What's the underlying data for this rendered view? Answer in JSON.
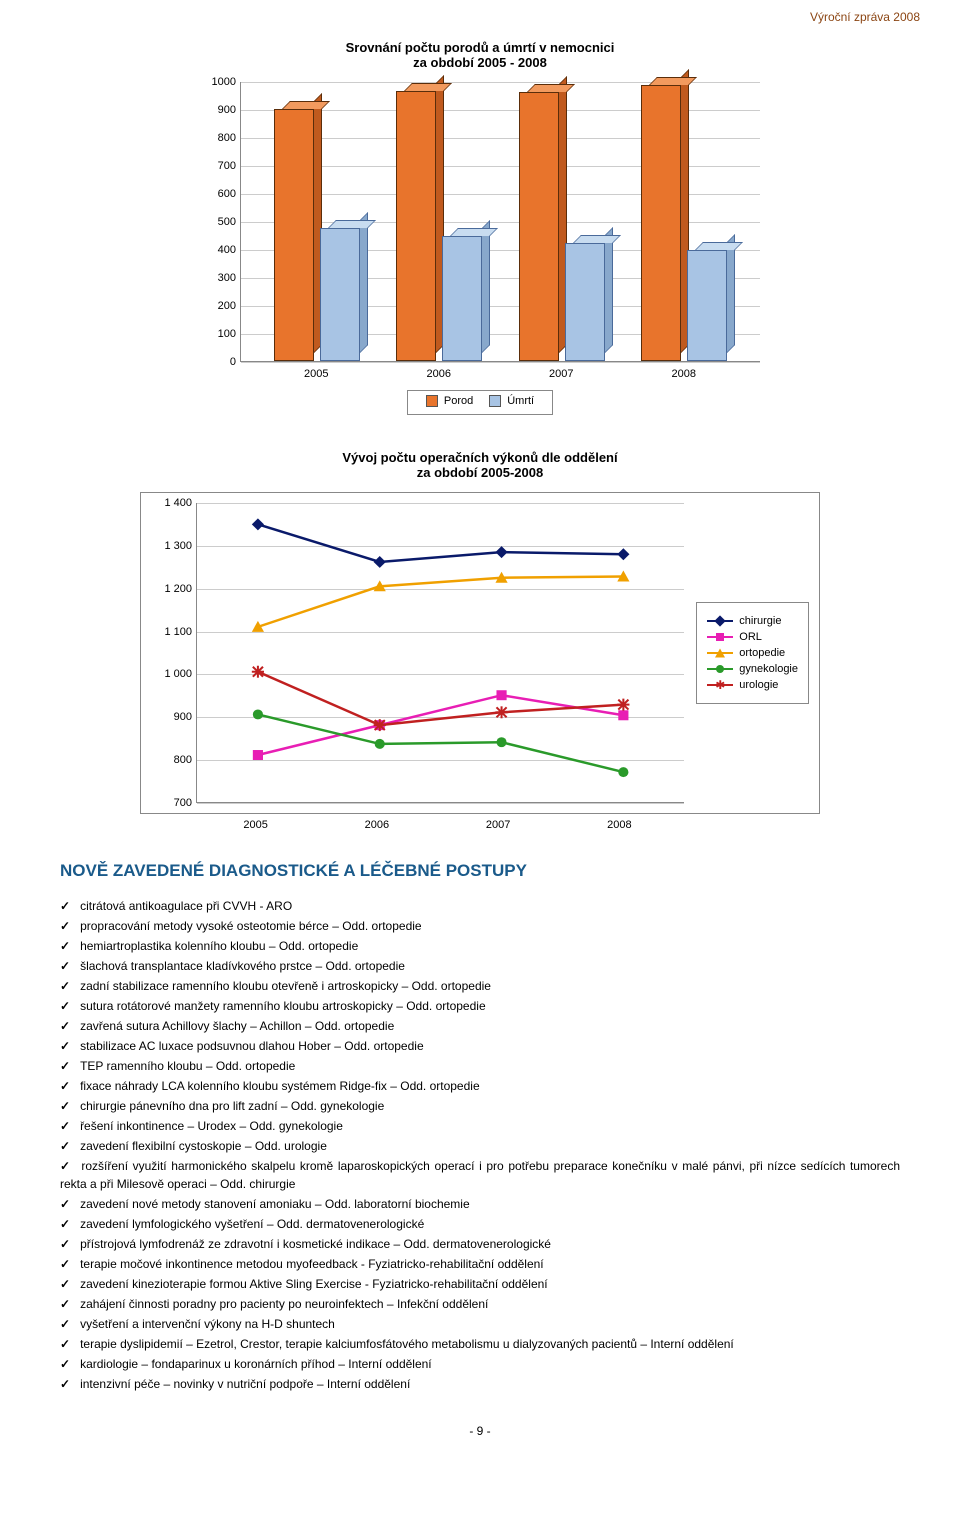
{
  "header_right": "Výroční zpráva 2008",
  "bar_chart": {
    "title": "Srovnání počtu porodů a úmrtí v nemocnici\nza období 2005 - 2008",
    "type": "bar",
    "categories": [
      "2005",
      "2006",
      "2007",
      "2008"
    ],
    "series": [
      {
        "name": "Porod",
        "color": "#e8742c",
        "values": [
          900,
          965,
          960,
          985
        ]
      },
      {
        "name": "Úmrtí",
        "color": "#a8c4e4",
        "values": [
          475,
          445,
          420,
          395
        ]
      }
    ],
    "ylim": [
      0,
      1000
    ],
    "ytick_step": 100,
    "background_color": "#ffffff",
    "grid_color": "#cccccc",
    "label_fontsize": 11
  },
  "line_chart": {
    "title": "Vývoj počtu operačních výkonů dle oddělení\nza období 2005-2008",
    "type": "line",
    "x_categories": [
      "2005",
      "2006",
      "2007",
      "2008"
    ],
    "ylim": [
      700,
      1400
    ],
    "ytick_step": 100,
    "background_color": "#ffffff",
    "grid_color": "#cccccc",
    "label_fontsize": 11,
    "series": [
      {
        "name": "chirurgie",
        "color": "#0a1a6a",
        "marker": "diamond",
        "values": [
          1350,
          1262,
          1285,
          1280
        ]
      },
      {
        "name": "ORL",
        "color": "#e81eb4",
        "marker": "square",
        "values": [
          810,
          880,
          950,
          903
        ]
      },
      {
        "name": "ortopedie",
        "color": "#f0a000",
        "marker": "triangle",
        "values": [
          1110,
          1205,
          1225,
          1228
        ]
      },
      {
        "name": "gynekologie",
        "color": "#2a9a2a",
        "marker": "circle",
        "values": [
          905,
          836,
          840,
          770
        ]
      },
      {
        "name": "urologie",
        "color": "#c02020",
        "marker": "asterisk",
        "values": [
          1005,
          880,
          910,
          928
        ]
      }
    ]
  },
  "section_title": "NOVĚ ZAVEDENÉ DIAGNOSTICKÉ A LÉČEBNÉ POSTUPY",
  "list_items": [
    "citrátová antikoagulace při CVVH - ARO",
    "propracování metody vysoké osteotomie bérce – Odd. ortopedie",
    "hemiartroplastika kolenního kloubu – Odd. ortopedie",
    "šlachová transplantace kladívkového prstce – Odd. ortopedie",
    "zadní stabilizace ramenního kloubu otevřeně i artroskopicky – Odd. ortopedie",
    "sutura rotátorové manžety ramenního kloubu artroskopicky – Odd. ortopedie",
    "zavřená sutura Achillovy šlachy – Achillon – Odd. ortopedie",
    "stabilizace AC luxace podsuvnou dlahou Hober – Odd. ortopedie",
    "TEP ramenního kloubu – Odd. ortopedie",
    "fixace náhrady LCA kolenního kloubu systémem Ridge-fix – Odd. ortopedie",
    "chirurgie pánevního dna  pro lift zadní – Odd. gynekologie",
    "řešení inkontinence – Urodex – Odd. gynekologie",
    "zavedení flexibilní cystoskopie – Odd. urologie",
    "rozšíření využití harmonického skalpelu kromě laparoskopických operací i pro potřebu preparace konečníku v malé pánvi, při nízce sedících tumorech rekta a při Milesově operaci – Odd. chirurgie",
    "zavedení nové metody stanovení amoniaku – Odd. laboratorní biochemie",
    "zavedení lymfologického vyšetření – Odd. dermatovenerologické",
    "přístrojová lymfodrenáž ze zdravotní i kosmetické indikace – Odd. dermatovenerologické",
    "terapie močové inkontinence metodou myofeedback - Fyziatricko-rehabilitační oddělení",
    "zavedení kinezioterapie formou Aktive Sling Exercise - Fyziatricko-rehabilitační oddělení",
    "zahájení činnosti poradny pro pacienty po neuroinfektech – Infekční oddělení",
    "vyšetření a intervenční výkony na H-D shuntech",
    "terapie dyslipidemií – Ezetrol, Crestor, terapie kalciumfosfátového metabolismu u dialyzovaných pacientů – Interní oddělení",
    "kardiologie – fondaparinux u koronárních příhod – Interní oddělení",
    "intenzivní péče – novinky v nutriční podpoře – Interní oddělení"
  ],
  "footer": "- 9 -"
}
